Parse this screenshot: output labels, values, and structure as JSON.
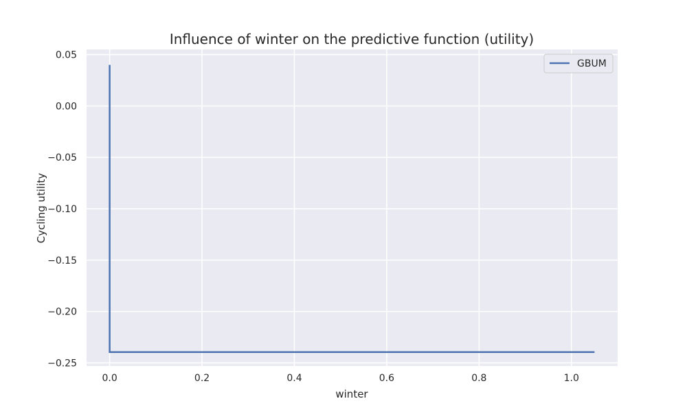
{
  "chart_data": {
    "type": "line",
    "title": "Influence of winter on the predictive function (utility)",
    "xlabel": "winter",
    "ylabel": "Cycling utility",
    "xlim": [
      -0.05,
      1.1
    ],
    "ylim": [
      -0.253,
      0.055
    ],
    "x_ticks": [
      0.0,
      0.2,
      0.4,
      0.6,
      0.8,
      1.0
    ],
    "x_tick_labels": [
      "0.0",
      "0.2",
      "0.4",
      "0.6",
      "0.8",
      "1.0"
    ],
    "y_ticks": [
      0.05,
      0.0,
      -0.05,
      -0.1,
      -0.15,
      -0.2,
      -0.25
    ],
    "y_tick_labels": [
      "0.05",
      "0.00",
      "−0.05",
      "−0.10",
      "−0.15",
      "−0.20",
      "−0.25"
    ],
    "grid": true,
    "legend_position": "top-right",
    "series": [
      {
        "name": "GBUM",
        "color": "#4c72b0",
        "x": [
          0.0,
          0.0,
          1.05
        ],
        "y": [
          0.04,
          -0.2395,
          -0.2395
        ]
      }
    ]
  },
  "colors": {
    "plot_background": "#eaeaf2",
    "grid": "#ffffff",
    "text": "#262626"
  }
}
